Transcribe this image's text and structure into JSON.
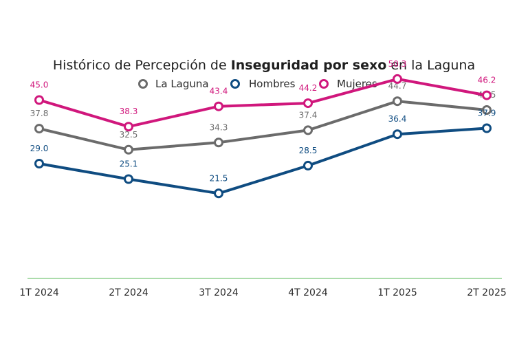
{
  "chart_data": {
    "type": "line",
    "title_parts": [
      {
        "text": "Histórico de Percepción de ",
        "bold": false
      },
      {
        "text": "Inseguridad por sexo",
        "bold": true
      },
      {
        "text": " en la Laguna",
        "bold": false
      }
    ],
    "categories": [
      "1T 2024",
      "2T 2024",
      "3T 2024",
      "4T 2024",
      "1T 2025",
      "2T 2025"
    ],
    "series": [
      {
        "name": "La Laguna",
        "color": "#6b6b6b",
        "values": [
          37.8,
          32.5,
          34.3,
          37.4,
          44.7,
          42.5
        ]
      },
      {
        "name": "Hombres",
        "color": "#0f4c81",
        "values": [
          29.0,
          25.1,
          21.5,
          28.5,
          36.4,
          37.9
        ]
      },
      {
        "name": "Mujeres",
        "color": "#d0177c",
        "values": [
          45.0,
          38.3,
          43.4,
          44.2,
          50.3,
          46.2
        ]
      }
    ],
    "legend_position": "top-center",
    "grid": false,
    "baseline_color": "#8fd18f"
  }
}
